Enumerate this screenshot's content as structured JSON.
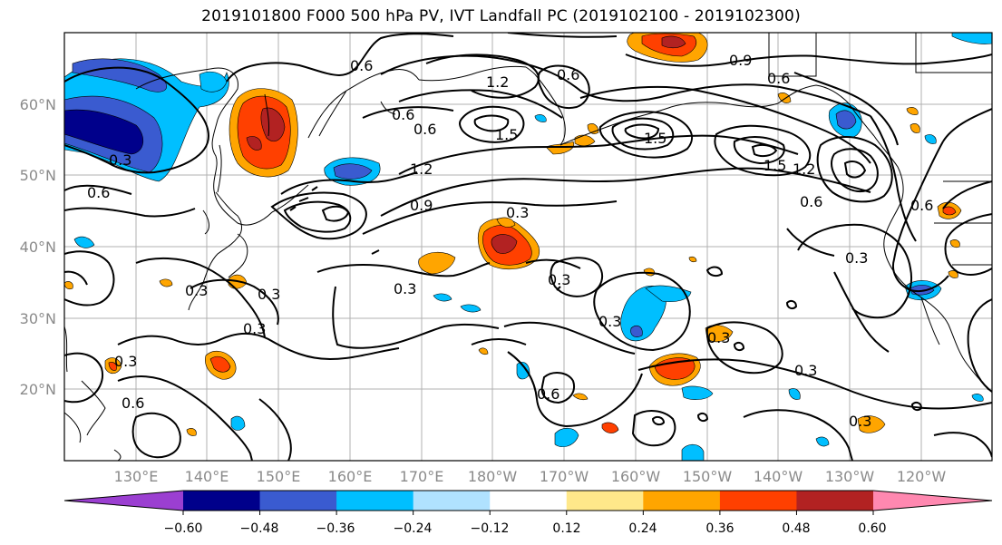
{
  "title": "2019101800 F000 500 hPa PV, IVT Landfall PC (2019102100 - 2019102300)",
  "map": {
    "lat_labels": [
      "60°N",
      "50°N",
      "40°N",
      "30°N",
      "20°N"
    ],
    "lon_labels": [
      "130°E",
      "140°E",
      "150°E",
      "160°E",
      "170°E",
      "180°W",
      "170°W",
      "160°W",
      "150°W",
      "140°W",
      "130°W",
      "120°W"
    ],
    "contour_labels": [
      "0.6",
      "1.2",
      "0.6",
      "0.9",
      "0.6",
      "0.6",
      "0.6",
      "1.5",
      "1.5",
      "1.5",
      "1.2",
      "0.3",
      "0.6",
      "1.2",
      "0.9",
      "0.3",
      "0.6",
      "0.3",
      "0.3",
      "0.3",
      "0.6",
      "0.3",
      "0.3",
      "0.3",
      "0.3",
      "0.3",
      "0.6",
      "0.6",
      "0.3",
      "0.3",
      "0.3"
    ]
  },
  "colorbar": {
    "ticks": [
      "−0.60",
      "−0.48",
      "−0.36",
      "−0.24",
      "−0.12",
      "0.12",
      "0.24",
      "0.36",
      "0.48",
      "0.60"
    ],
    "colors": [
      "#9b3fd1",
      "#00008b",
      "#3a5bd0",
      "#00bfff",
      "#b0e2ff",
      "#ffffff",
      "#ffe88a",
      "#ffa500",
      "#ff4000",
      "#b22222",
      "#ff88b0"
    ]
  }
}
